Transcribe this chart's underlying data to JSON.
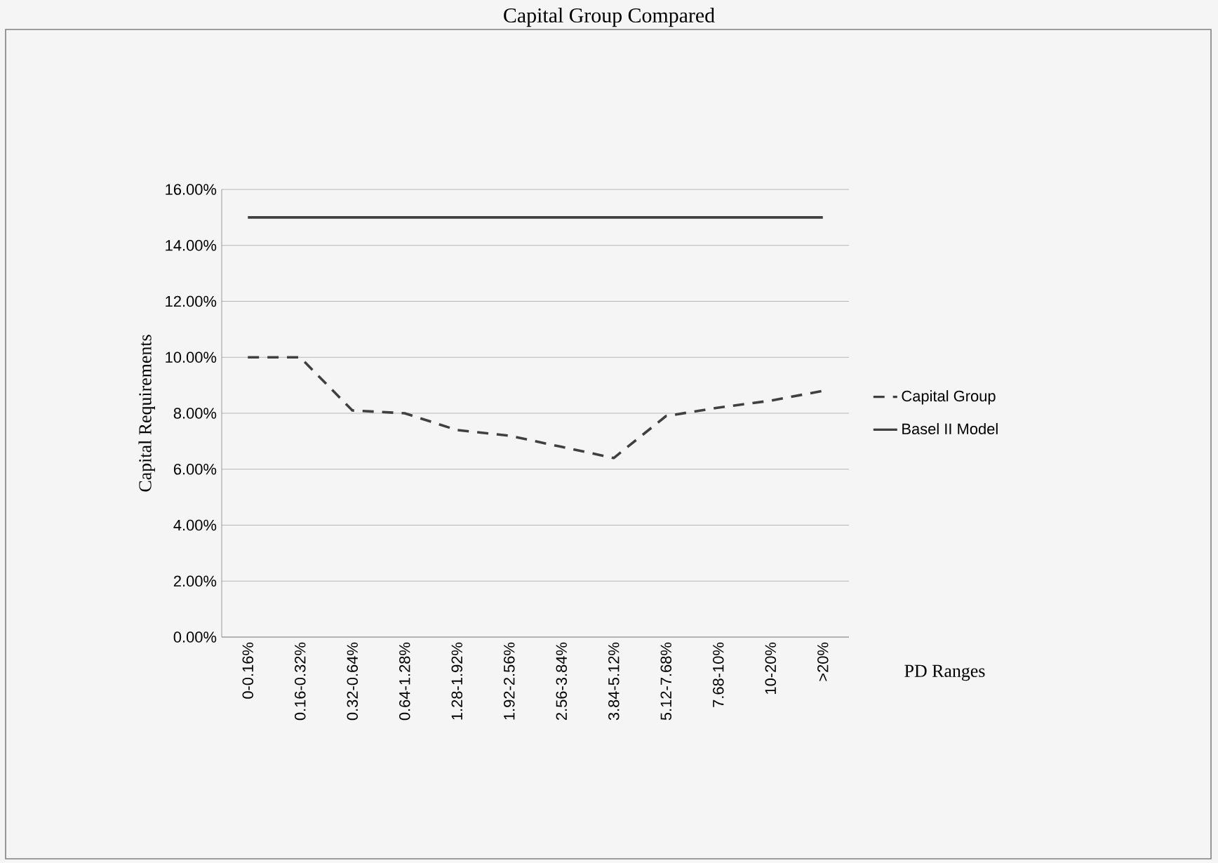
{
  "chart_data": {
    "type": "line",
    "title": "Capital Group Compared",
    "xlabel": "PD Ranges",
    "ylabel": "Capital Requirements",
    "categories": [
      "0-0.16%",
      "0.16-0.32%",
      "0.32-0.64%",
      "0.64-1.28%",
      "1.28-1.92%",
      "1.92-2.56%",
      "2.56-3.84%",
      "3.84-5.12%",
      "5.12-7.68%",
      "7.68-10%",
      "10-20%",
      ">20%"
    ],
    "series": [
      {
        "name": "Capital Group",
        "color": "#404040",
        "line_style": "dashed",
        "values": [
          10.0,
          10.0,
          8.1,
          8.0,
          7.4,
          7.2,
          6.8,
          6.4,
          7.9,
          8.2,
          8.45,
          8.8
        ]
      },
      {
        "name": "Basel II Model",
        "color": "#404040",
        "line_style": "solid",
        "values": [
          15,
          15,
          15,
          15,
          15,
          15,
          15,
          15,
          15,
          15,
          15,
          15
        ]
      }
    ],
    "ylim": [
      0,
      16
    ],
    "yticks": [
      {
        "value": 0,
        "label": "0.00%"
      },
      {
        "value": 2,
        "label": "2.00%"
      },
      {
        "value": 4,
        "label": "4.00%"
      },
      {
        "value": 6,
        "label": "6.00%"
      },
      {
        "value": 8,
        "label": "8.00%"
      },
      {
        "value": 10,
        "label": "10.00%"
      },
      {
        "value": 12,
        "label": "12.00%"
      },
      {
        "value": 14,
        "label": "14.00%"
      },
      {
        "value": 16,
        "label": "16.00%"
      }
    ],
    "grid": "y",
    "legend": "right",
    "marker": "none"
  }
}
